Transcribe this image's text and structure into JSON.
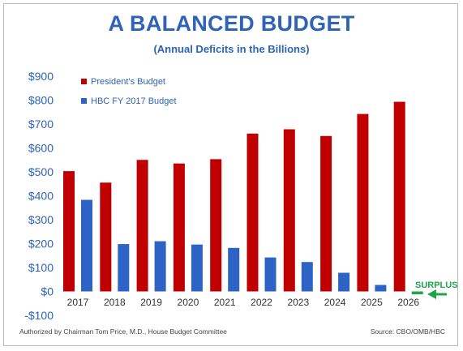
{
  "chart_data": {
    "type": "bar",
    "title": "A BALANCED BUDGET",
    "subtitle": "(Annual Deficits in the Billions)",
    "categories": [
      "2017",
      "2018",
      "2019",
      "2020",
      "2021",
      "2022",
      "2023",
      "2024",
      "2025",
      "2026"
    ],
    "series": [
      {
        "name": "President's Budget",
        "color": "#c00000",
        "values": [
          503,
          455,
          550,
          535,
          553,
          660,
          678,
          650,
          742,
          793
        ]
      },
      {
        "name": "HBC FY 2017 Budget",
        "color": "#2e63c6",
        "values": [
          383,
          198,
          210,
          196,
          182,
          142,
          123,
          78,
          27,
          -12
        ]
      }
    ],
    "ylim": [
      -100,
      900
    ],
    "yticks": [
      -100,
      0,
      100,
      200,
      300,
      400,
      500,
      600,
      700,
      800,
      900
    ],
    "ytick_labels": [
      "-$100",
      "$0",
      "$100",
      "$200",
      "$300",
      "$400",
      "$500",
      "$600",
      "$700",
      "$800",
      "$900"
    ],
    "legend_position": "top-left",
    "grid": false,
    "annotation": {
      "text": "SURPLUS",
      "color": "#1fa64a"
    },
    "surplus_bar_color": "#1fa64a"
  },
  "footer": {
    "left": "Authorized by Chairman Tom Price, M.D., House Budget Committee",
    "right": "Source: CBO/OMB/HBC"
  }
}
